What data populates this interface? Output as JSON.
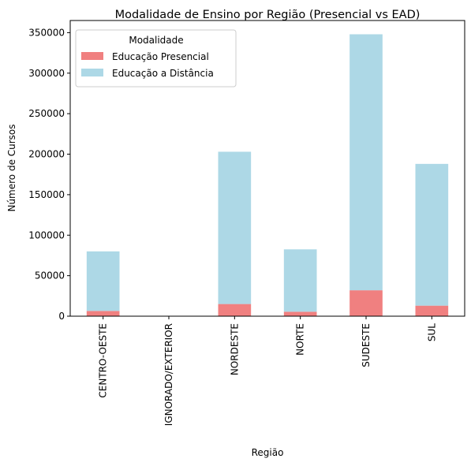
{
  "chart_data": {
    "type": "bar",
    "stacked": true,
    "title": "Modalidade de Ensino por Região (Presencial vs EAD)",
    "xlabel": "Região",
    "ylabel": "Número de Cursos",
    "categories": [
      "CENTRO-OESTE",
      "IGNORADO/EXTERIOR",
      "NORDESTE",
      "NORTE",
      "SUDESTE",
      "SUL"
    ],
    "series": [
      {
        "name": "Educação Presencial",
        "color": "#f08080",
        "values": [
          6500,
          0,
          15000,
          5500,
          32000,
          13000
        ]
      },
      {
        "name": "Educação a Distância",
        "color": "#add8e6",
        "values": [
          73500,
          0,
          188000,
          77000,
          316000,
          175000
        ]
      }
    ],
    "ylim": [
      0,
      365000
    ],
    "yticks": [
      0,
      50000,
      100000,
      150000,
      200000,
      250000,
      300000,
      350000
    ],
    "legend": {
      "title": "Modalidade",
      "position": "top-left"
    },
    "grid": false
  }
}
